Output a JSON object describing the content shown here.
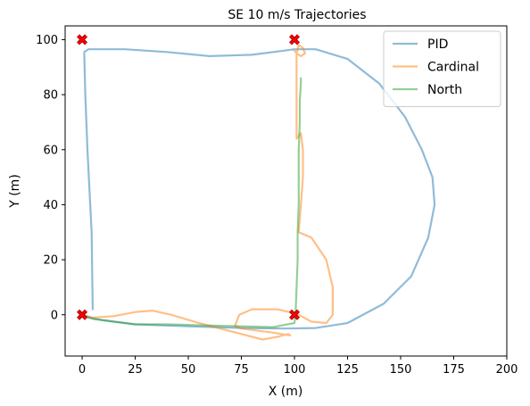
{
  "chart_data": {
    "type": "line",
    "title": "SE 10 m/s Trajectories",
    "xlabel": "X (m)",
    "ylabel": "Y (m)",
    "xlim": [
      -8,
      200
    ],
    "ylim": [
      -15,
      105
    ],
    "xticks": [
      0,
      25,
      50,
      75,
      100,
      125,
      150,
      175,
      200
    ],
    "yticks": [
      0,
      20,
      40,
      60,
      80,
      100
    ],
    "grid": false,
    "legend_position": "top-right",
    "series": [
      {
        "name": "PID",
        "color": "#1f77b4",
        "points": [
          [
            5,
            2
          ],
          [
            4.5,
            30
          ],
          [
            2.5,
            60
          ],
          [
            1.5,
            80
          ],
          [
            1,
            95.5
          ],
          [
            3,
            96.5
          ],
          [
            20,
            96.5
          ],
          [
            40,
            95.5
          ],
          [
            60,
            94
          ],
          [
            80,
            94.5
          ],
          [
            95,
            96
          ],
          [
            100,
            96.5
          ],
          [
            110,
            96.5
          ],
          [
            125,
            93
          ],
          [
            140,
            84
          ],
          [
            152,
            72
          ],
          [
            160,
            60
          ],
          [
            165,
            50
          ],
          [
            166,
            40
          ],
          [
            163,
            28
          ],
          [
            155,
            14
          ],
          [
            142,
            4
          ],
          [
            125,
            -3
          ],
          [
            110,
            -4.8
          ],
          [
            95,
            -5
          ],
          [
            75,
            -4.8
          ],
          [
            50,
            -4.2
          ],
          [
            25,
            -3.5
          ],
          [
            10,
            -2
          ],
          [
            0,
            -0.5
          ]
        ]
      },
      {
        "name": "Cardinal",
        "color": "#ff7f0e",
        "points": [
          [
            0,
            0
          ],
          [
            5,
            -1
          ],
          [
            15,
            -0.5
          ],
          [
            25,
            1
          ],
          [
            33,
            1.5
          ],
          [
            42,
            0
          ],
          [
            55,
            -3
          ],
          [
            65,
            -5
          ],
          [
            75,
            -7
          ],
          [
            85,
            -9
          ],
          [
            92,
            -8
          ],
          [
            97,
            -7
          ],
          [
            98,
            -7.5
          ],
          [
            90,
            -6.5
          ],
          [
            75,
            -5
          ],
          [
            72,
            -4
          ],
          [
            74,
            0
          ],
          [
            80,
            2
          ],
          [
            92,
            2
          ],
          [
            100,
            0.5
          ],
          [
            102,
            0
          ],
          [
            108,
            -2.5
          ],
          [
            115,
            -3
          ],
          [
            118,
            0
          ],
          [
            118,
            10
          ],
          [
            115,
            20
          ],
          [
            108,
            28
          ],
          [
            102,
            30
          ],
          [
            103,
            40
          ],
          [
            104,
            50
          ],
          [
            104,
            60
          ],
          [
            103,
            66
          ],
          [
            101,
            64
          ],
          [
            101,
            75
          ],
          [
            101,
            85
          ],
          [
            101,
            95
          ],
          [
            102,
            98
          ],
          [
            104,
            97
          ],
          [
            105,
            95
          ],
          [
            103,
            94
          ],
          [
            101,
            95
          ],
          [
            100,
            96
          ]
        ]
      },
      {
        "name": "North",
        "color": "#2ca02c",
        "points": [
          [
            0,
            0
          ],
          [
            5,
            -1.5
          ],
          [
            15,
            -2.5
          ],
          [
            25,
            -3.5
          ],
          [
            40,
            -3.5
          ],
          [
            55,
            -3.8
          ],
          [
            75,
            -4.2
          ],
          [
            90,
            -4.5
          ],
          [
            100,
            -3
          ],
          [
            100.5,
            0
          ],
          [
            101,
            10
          ],
          [
            101.5,
            20
          ],
          [
            101.5,
            30
          ],
          [
            102,
            40
          ],
          [
            102,
            50
          ],
          [
            102,
            60
          ],
          [
            102.5,
            70
          ],
          [
            102.5,
            78
          ],
          [
            103,
            84
          ],
          [
            103,
            86
          ]
        ]
      }
    ],
    "markers": {
      "color": "#ff0000",
      "edge": "#800000",
      "points": [
        [
          0,
          100
        ],
        [
          100,
          100
        ],
        [
          0,
          0
        ],
        [
          100,
          0
        ]
      ]
    }
  }
}
